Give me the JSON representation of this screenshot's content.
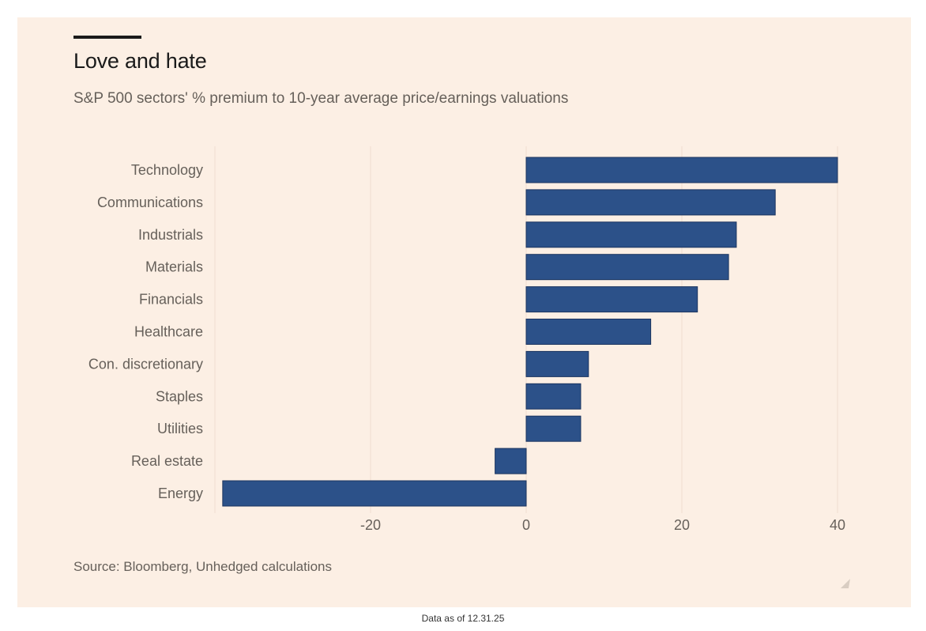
{
  "header": {
    "title": "Love and hate",
    "subtitle": "S&P 500 sectors' % premium to 10-year average price/earnings valuations"
  },
  "source": "Source: Bloomberg, Unhedged calculations",
  "footnote": "Data as of 12.31.25",
  "colors": {
    "bar": "#2c5189",
    "background": "#fcefe4",
    "text": "#66605a",
    "title": "#1a1a1a"
  },
  "chart_data": {
    "type": "bar",
    "orientation": "horizontal",
    "title": "Love and hate",
    "subtitle": "S&P 500 sectors' % premium to 10-year average price/earnings valuations",
    "xlabel": "",
    "ylabel": "",
    "categories": [
      "Technology",
      "Communications",
      "Industrials",
      "Materials",
      "Financials",
      "Healthcare",
      "Con. discretionary",
      "Staples",
      "Utilities",
      "Real estate",
      "Energy"
    ],
    "values": [
      40,
      32,
      27,
      26,
      22,
      16,
      8,
      7,
      7,
      -4,
      -39
    ],
    "xlim": [
      -40,
      40
    ],
    "xticks": [
      -20,
      0,
      20,
      40
    ],
    "xtick_labels": [
      "-20",
      "0",
      "20",
      "40"
    ],
    "grid": true,
    "legend": "none",
    "source": "Source: Bloomberg, Unhedged calculations"
  }
}
